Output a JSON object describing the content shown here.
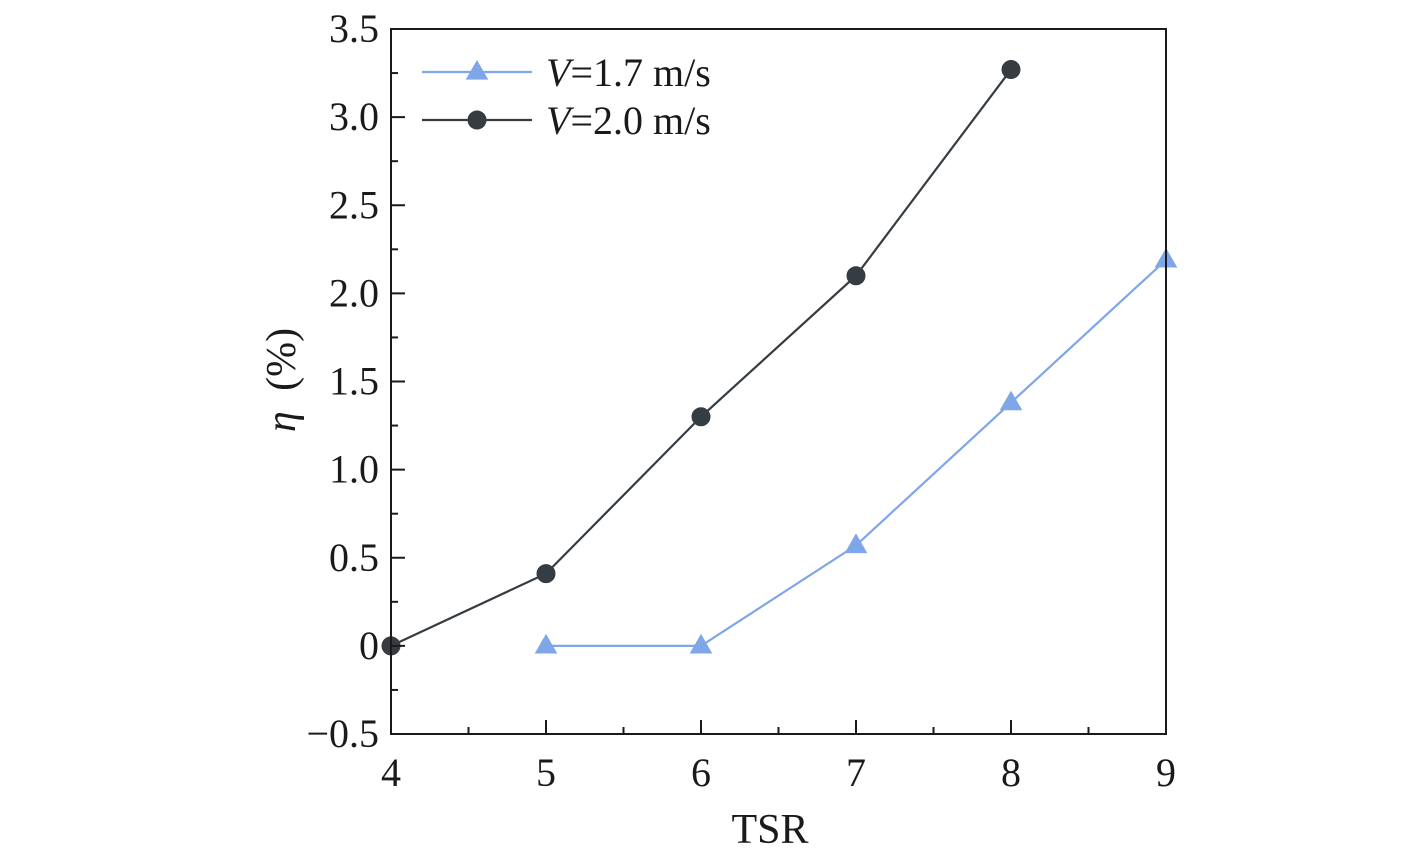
{
  "chart_data": {
    "type": "line",
    "title": "",
    "xlabel": "TSR",
    "ylabel": "η (%)",
    "ylabel_symbol": "η",
    "ylabel_unit": "(%)",
    "xlim": [
      4,
      9
    ],
    "ylim": [
      -0.5,
      3.5
    ],
    "x_major_ticks": [
      4,
      5,
      6,
      7,
      8,
      9
    ],
    "x_tick_labels": [
      "4",
      "5",
      "6",
      "7",
      "8",
      "9"
    ],
    "y_major_ticks": [
      -0.5,
      0,
      0.5,
      1.0,
      1.5,
      2.0,
      2.5,
      3.0,
      3.5
    ],
    "y_tick_labels": [
      "−0.5",
      "0",
      "0.5",
      "1.0",
      "1.5",
      "2.0",
      "2.5",
      "3.0",
      "3.5"
    ],
    "grid": false,
    "legend_position": "top-left",
    "series": [
      {
        "name": "V=1.7 m/s",
        "legend_var": "V",
        "legend_rest": "=1.7 m/s",
        "marker": "triangle",
        "color": "#7ea6e8",
        "x": [
          5,
          6,
          7,
          8,
          9
        ],
        "y": [
          0,
          0,
          0.57,
          1.38,
          2.19
        ]
      },
      {
        "name": "V=2.0 m/s",
        "legend_var": "V",
        "legend_rest": "=2.0 m/s",
        "marker": "circle",
        "color": "#353c42",
        "x": [
          4,
          5,
          6,
          7,
          8
        ],
        "y": [
          0,
          0.41,
          1.3,
          2.1,
          3.27
        ]
      }
    ]
  }
}
